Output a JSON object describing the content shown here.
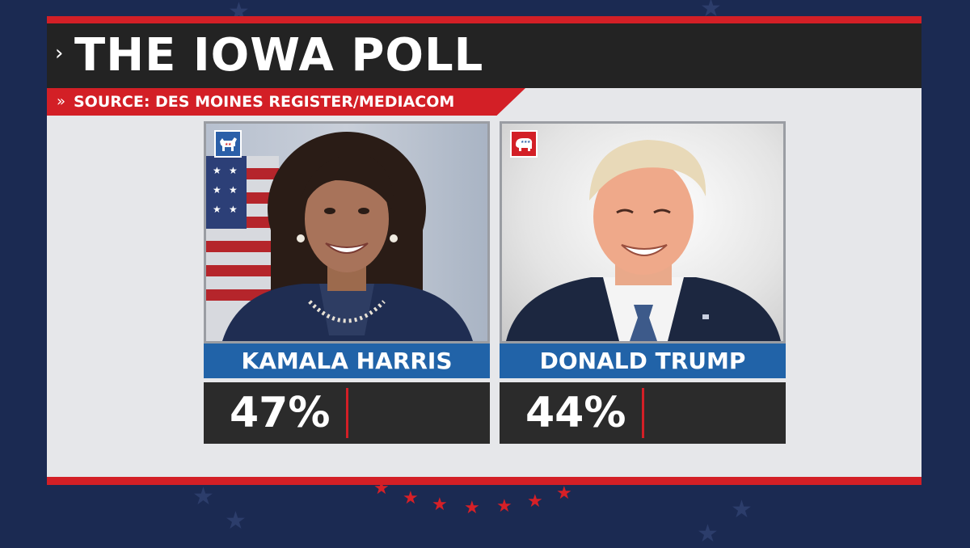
{
  "header": {
    "title": "THE IOWA POLL",
    "source": "SOURCE: DES MOINES REGISTER/MEDIACOM"
  },
  "candidates": [
    {
      "name": "KAMALA HARRIS",
      "percent": "47%",
      "party_icon": "donkey-icon",
      "party_color": "#2b5fa8"
    },
    {
      "name": "DONALD TRUMP",
      "percent": "44%",
      "party_icon": "elephant-icon",
      "party_color": "#d31f26"
    }
  ],
  "colors": {
    "background": "#1b2a52",
    "accent_red": "#d31f26",
    "name_bar_blue": "#2163a8",
    "title_bar": "#232323",
    "percent_box": "#2b2b2b"
  }
}
